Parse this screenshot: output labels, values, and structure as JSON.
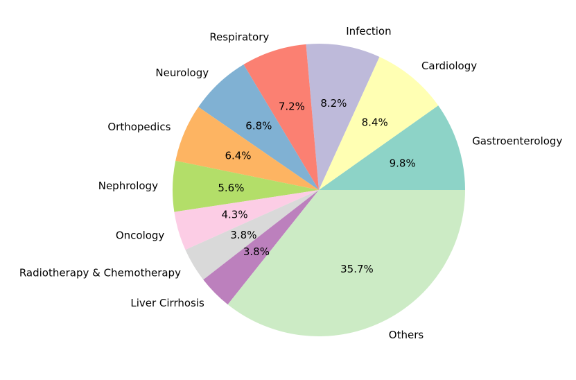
{
  "chart_data": {
    "type": "pie",
    "title": "",
    "start_angle_deg": 0,
    "direction": "counterclockwise",
    "slices": [
      {
        "label": "Gastroenterology",
        "value": 9.8,
        "pct_label": "9.8%",
        "color": "#8dd3c7"
      },
      {
        "label": "Cardiology",
        "value": 8.4,
        "pct_label": "8.4%",
        "color": "#ffffb3"
      },
      {
        "label": "Infection",
        "value": 8.2,
        "pct_label": "8.2%",
        "color": "#bebada"
      },
      {
        "label": "Respiratory",
        "value": 7.2,
        "pct_label": "7.2%",
        "color": "#fb8072"
      },
      {
        "label": "Neurology",
        "value": 6.8,
        "pct_label": "6.8%",
        "color": "#80b1d3"
      },
      {
        "label": "Orthopedics",
        "value": 6.4,
        "pct_label": "6.4%",
        "color": "#fdb462"
      },
      {
        "label": "Nephrology",
        "value": 5.6,
        "pct_label": "5.6%",
        "color": "#b3de69"
      },
      {
        "label": "Oncology",
        "value": 4.3,
        "pct_label": "4.3%",
        "color": "#fccde5"
      },
      {
        "label": "Radiotherapy & Chemotherapy",
        "value": 3.8,
        "pct_label": "3.8%",
        "color": "#d9d9d9"
      },
      {
        "label": "Liver Cirrhosis",
        "value": 3.8,
        "pct_label": "3.8%",
        "color": "#bc80bd"
      },
      {
        "label": "Others",
        "value": 35.7,
        "pct_label": "35.7%",
        "color": "#ccebc5"
      }
    ]
  }
}
